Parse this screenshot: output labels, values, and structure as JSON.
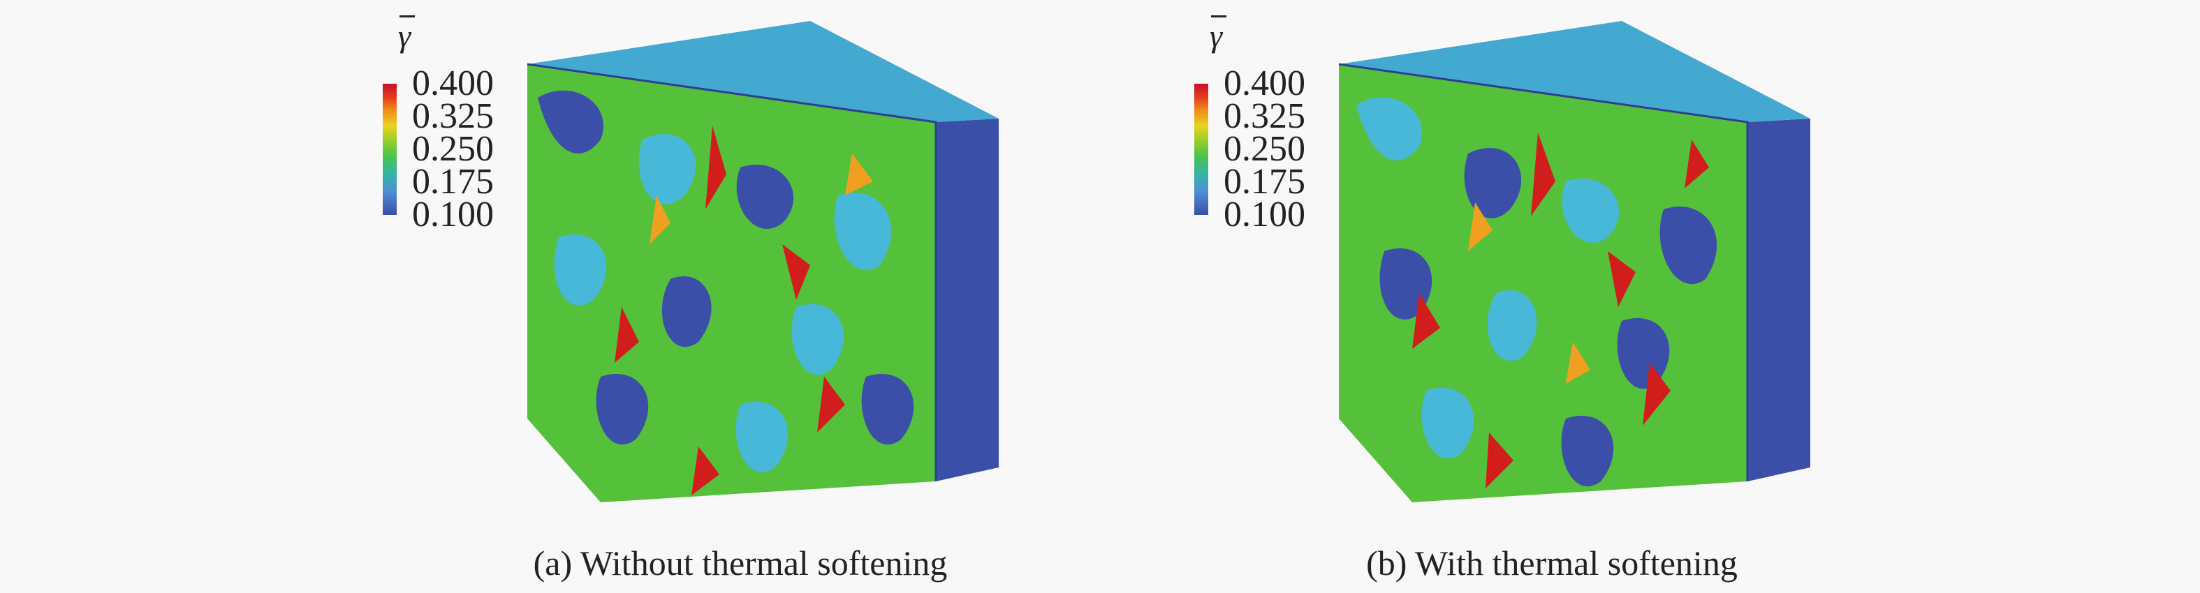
{
  "colors": {
    "high": "#d21d1d",
    "mid_high": "#f0a020",
    "mid": "#55c03a",
    "mid_low": "#48b8d8",
    "low": "#3b4fa8"
  },
  "legend": {
    "symbol": "γ",
    "ticks": [
      "0.400",
      "0.325",
      "0.250",
      "0.175",
      "0.100"
    ]
  },
  "panels": [
    {
      "caption": "(a) Without thermal softening"
    },
    {
      "caption": "(b) With thermal softening"
    }
  ]
}
